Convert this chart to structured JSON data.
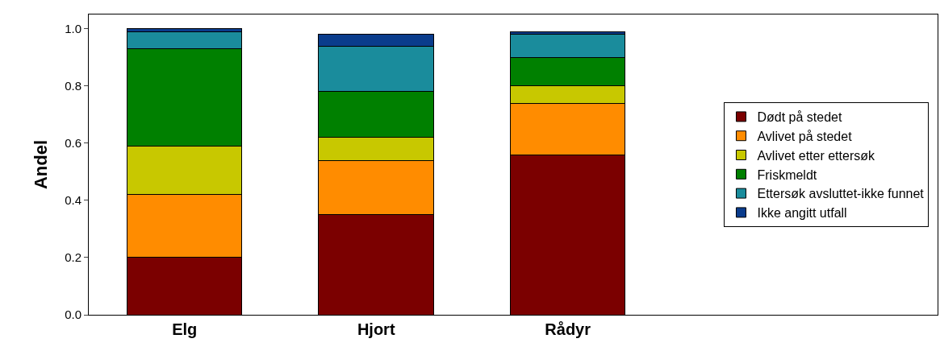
{
  "chart_data": {
    "type": "bar",
    "stacked": true,
    "ylabel": "Andel",
    "categories": [
      "Elg",
      "Hjort",
      "Rådyr"
    ],
    "ylim": [
      0,
      1.05
    ],
    "yticks": [
      {
        "value": 0,
        "label": "0.0"
      },
      {
        "value": 0.2,
        "label": "0.2"
      },
      {
        "value": 0.4,
        "label": "0.4"
      },
      {
        "value": 0.6,
        "label": "0.6"
      },
      {
        "value": 0.8,
        "label": "0.8"
      },
      {
        "value": 1,
        "label": "1.0"
      }
    ],
    "legend": "right",
    "series": [
      {
        "name": "Dødt på stedet",
        "color": "#7b0000",
        "values": [
          0.2,
          0.35,
          0.56
        ]
      },
      {
        "name": "Avlivet på stedet",
        "color": "#ff8c00",
        "values": [
          0.22,
          0.19,
          0.18
        ]
      },
      {
        "name": "Avlivet etter ettersøk",
        "color": "#c8c800",
        "values": [
          0.17,
          0.08,
          0.06
        ]
      },
      {
        "name": "Friskmeldt",
        "color": "#008000",
        "values": [
          0.34,
          0.16,
          0.1
        ]
      },
      {
        "name": "Ettersøk avsluttet-ikke funnet",
        "color": "#1a8c9c",
        "values": [
          0.06,
          0.16,
          0.08
        ]
      },
      {
        "name": "Ikke angitt utfall",
        "color": "#0a3c8c",
        "values": [
          0.01,
          0.04,
          0.01
        ]
      }
    ]
  }
}
